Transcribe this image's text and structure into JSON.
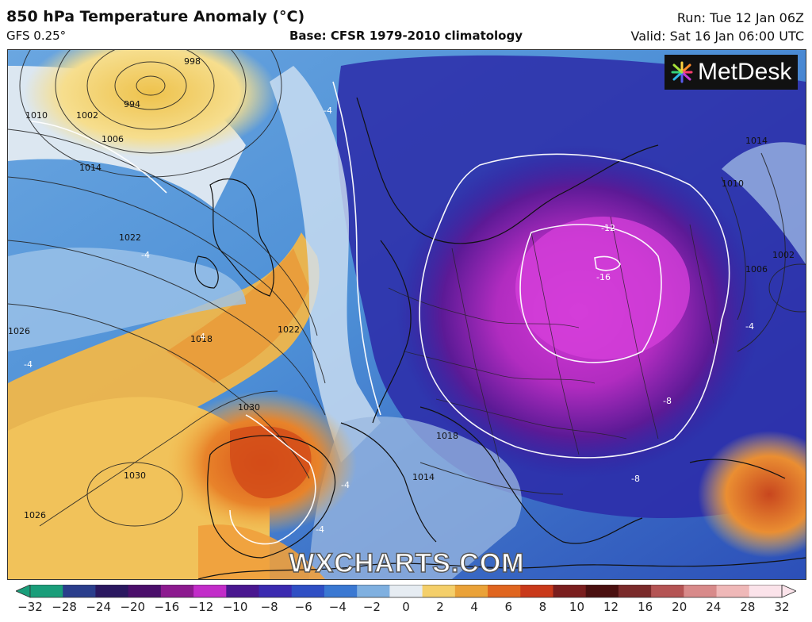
{
  "header": {
    "title": "850 hPa Temperature Anomaly (°C)",
    "model": "GFS 0.25°",
    "base": "Base: CFSR 1979-2010 climatology",
    "run": "Run: Tue 12 Jan 06Z",
    "valid": "Valid: Sat 16 Jan 06:00 UTC"
  },
  "branding": {
    "logo_text": "MetDesk",
    "logo_icon": "starburst-icon",
    "watermark": "WXCHARTS.COM"
  },
  "map": {
    "region": "Europe and North Atlantic",
    "isobar_labels": [
      "998",
      "994",
      "1002",
      "1006",
      "1010",
      "1014",
      "1022",
      "1018",
      "1022",
      "1026",
      "1030",
      "1030",
      "1026",
      "1018",
      "1014",
      "1014",
      "1010",
      "1006",
      "1002"
    ],
    "anomaly_labels": [
      "-4",
      "-4",
      "-4",
      "-12",
      "-16",
      "-8",
      "-8",
      "-4",
      "-4",
      "-4",
      "4"
    ],
    "colors": {
      "ocean_warm": "#f3c24a",
      "ocean_cool": "#4d8fd6",
      "cold_core": "#c22cc9",
      "cold_deep": "#3a1585",
      "warm_core": "#e0651f"
    }
  },
  "colorbar": {
    "label": "850 hPa Temperature Anomaly (°C)",
    "ticks": [
      "−32",
      "−28",
      "−24",
      "−20",
      "−16",
      "−12",
      "−10",
      "−8",
      "−6",
      "−4",
      "−2",
      "0",
      "2",
      "4",
      "6",
      "8",
      "10",
      "12",
      "16",
      "20",
      "24",
      "28",
      "32"
    ],
    "colors": [
      "#1a9e7a",
      "#2a3e8c",
      "#2a1860",
      "#4b0f6b",
      "#8c1a8f",
      "#c22cc9",
      "#4a1790",
      "#3b2ab0",
      "#2f4fc4",
      "#3a78d2",
      "#7fb0e0",
      "#e6ecf2",
      "#f4cf6a",
      "#eaa238",
      "#e0651f",
      "#c9391a",
      "#7a1e1e",
      "#4a1010",
      "#7a2a2a",
      "#b45454",
      "#d88a8a",
      "#efb8b8",
      "#fbe3ea"
    ]
  }
}
